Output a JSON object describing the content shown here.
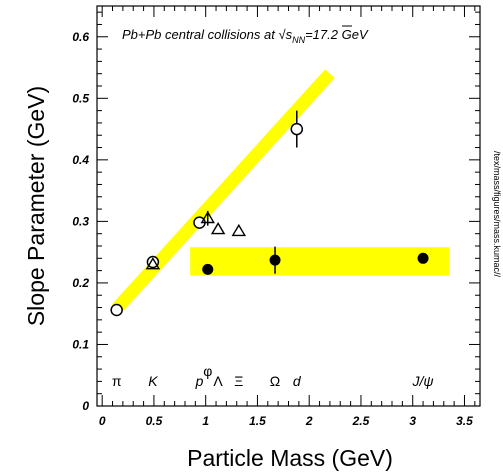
{
  "chart_data": {
    "type": "scatter",
    "title_parts": {
      "pre": "Pb+Pb central collisions at ",
      "sqrt": "√",
      "s": "s",
      "sub": "NN",
      "post": "=17.2 GeV"
    },
    "xlabel": "Particle Mass (GeV)",
    "ylabel": "Slope Parameter (GeV)",
    "side_label": "/tex/mass/figures/mass.kumac//",
    "xlim": [
      -0.05,
      3.65
    ],
    "ylim": [
      0,
      0.65
    ],
    "x_ticks": [
      {
        "v": 0,
        "label": "0"
      },
      {
        "v": 0.5,
        "label": "0.5"
      },
      {
        "v": 1,
        "label": "1"
      },
      {
        "v": 1.5,
        "label": "1.5"
      },
      {
        "v": 2,
        "label": "2"
      },
      {
        "v": 2.5,
        "label": "2.5"
      },
      {
        "v": 3,
        "label": "3"
      },
      {
        "v": 3.5,
        "label": "3.5"
      }
    ],
    "y_ticks": [
      {
        "v": 0,
        "label": "0"
      },
      {
        "v": 0.1,
        "label": "0.1"
      },
      {
        "v": 0.2,
        "label": "0.2"
      },
      {
        "v": 0.3,
        "label": "0.3"
      },
      {
        "v": 0.4,
        "label": "0.4"
      },
      {
        "v": 0.5,
        "label": "0.5"
      },
      {
        "v": 0.6,
        "label": "0.6"
      }
    ],
    "bands": {
      "line_band": {
        "x1": 0.14,
        "y1": 0.158,
        "x2": 2.2,
        "y2": 0.54,
        "color": "#ffff00"
      },
      "flat_band": {
        "x1": 0.85,
        "x2": 3.35,
        "ylow": 0.212,
        "yhigh": 0.258,
        "color": "#ffff00"
      }
    },
    "series": [
      {
        "marker": "open-circle",
        "points": [
          {
            "x": 0.14,
            "y": 0.156
          },
          {
            "x": 0.49,
            "y": 0.234
          },
          {
            "x": 0.94,
            "y": 0.298
          },
          {
            "x": 1.88,
            "y": 0.45,
            "err": 0.03
          }
        ]
      },
      {
        "marker": "open-triangle",
        "points": [
          {
            "x": 0.49,
            "y": 0.23
          },
          {
            "x": 1.02,
            "y": 0.305,
            "err": 0.012
          },
          {
            "x": 1.12,
            "y": 0.287
          },
          {
            "x": 1.32,
            "y": 0.284
          }
        ]
      },
      {
        "marker": "filled-circle",
        "points": [
          {
            "x": 1.02,
            "y": 0.222
          },
          {
            "x": 1.67,
            "y": 0.237,
            "err": 0.022
          },
          {
            "x": 3.1,
            "y": 0.24
          }
        ]
      }
    ],
    "particle_labels": [
      {
        "x": 0.14,
        "text": "π",
        "italic": false
      },
      {
        "x": 0.49,
        "text": "K",
        "italic": true
      },
      {
        "x": 0.94,
        "text": "p",
        "italic": true
      },
      {
        "x": 1.02,
        "text": "φ",
        "italic": false,
        "raised": true
      },
      {
        "x": 1.12,
        "text": "Λ",
        "italic": false
      },
      {
        "x": 1.32,
        "text": "Ξ",
        "italic": false
      },
      {
        "x": 1.67,
        "text": "Ω",
        "italic": false
      },
      {
        "x": 1.88,
        "text": "d",
        "italic": true
      },
      {
        "x": 3.1,
        "text": "J/ψ",
        "italic": true
      }
    ]
  }
}
